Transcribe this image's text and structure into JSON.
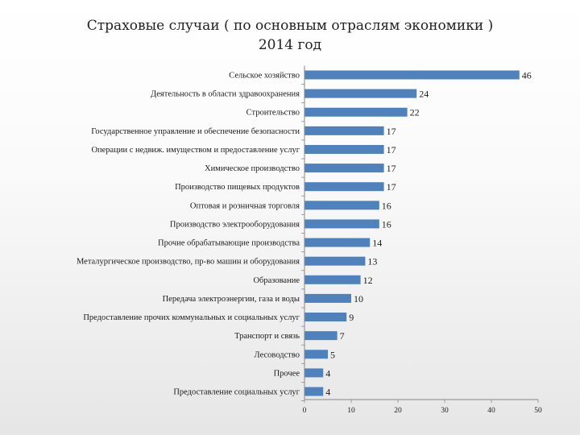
{
  "chart_data": {
    "type": "bar",
    "orientation": "horizontal",
    "title_line1": "Страховые случаи ( по основным отраслям экономики )",
    "title_line2": "2014 год",
    "categories": [
      "Сельское хозяйство",
      "Деятельность в области здравоохранения",
      "Строительство",
      "Государственное управление и обеспечение безопасности",
      "Операции с недвиж. имуществом и предоставление услуг",
      "Химическое производство",
      "Производство пищевых продуктов",
      "Оптовая и розничная торговля",
      "Производство электрооборудования",
      "Прочие обрабатывающие производства",
      "Металургическое производство, пр-во машин и оборудования",
      "Образование",
      "Передача электроэнергии, газа и воды",
      "Предоставление прочих коммунальных и социальных услуг",
      "Транспорт и связь",
      "Лесоводство",
      "Прочее",
      "Предоставление социальных услуг"
    ],
    "values": [
      46,
      24,
      22,
      17,
      17,
      17,
      17,
      16,
      16,
      14,
      13,
      12,
      10,
      9,
      7,
      5,
      4,
      4
    ],
    "xlim": [
      0,
      50
    ],
    "xticks": [
      0,
      10,
      20,
      30,
      40,
      50
    ],
    "grid": false,
    "legend": "none",
    "bar_color": "#4f81bd"
  }
}
